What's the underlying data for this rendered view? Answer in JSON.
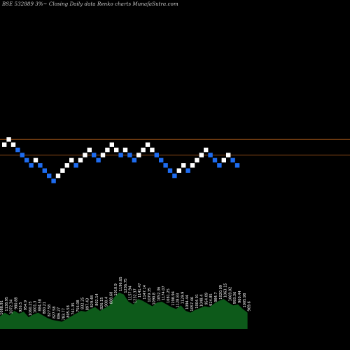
{
  "title": "BSE 532889 3%~  Closing Daily data  Renko  charts MunafaSutra.com",
  "chart_data": {
    "type": "renko",
    "renko": {
      "bricks": [
        {
          "level": 0,
          "dir": "up"
        },
        {
          "level": 1,
          "dir": "up"
        },
        {
          "level": 0,
          "dir": "up"
        },
        {
          "level": -1,
          "dir": "down"
        },
        {
          "level": -2,
          "dir": "down"
        },
        {
          "level": -3,
          "dir": "down"
        },
        {
          "level": -4,
          "dir": "down"
        },
        {
          "level": -3,
          "dir": "up"
        },
        {
          "level": -4,
          "dir": "down"
        },
        {
          "level": -5,
          "dir": "down"
        },
        {
          "level": -6,
          "dir": "down"
        },
        {
          "level": -7,
          "dir": "down"
        },
        {
          "level": -6,
          "dir": "up"
        },
        {
          "level": -5,
          "dir": "up"
        },
        {
          "level": -4,
          "dir": "up"
        },
        {
          "level": -3,
          "dir": "up"
        },
        {
          "level": -4,
          "dir": "down"
        },
        {
          "level": -3,
          "dir": "up"
        },
        {
          "level": -2,
          "dir": "up"
        },
        {
          "level": -1,
          "dir": "up"
        },
        {
          "level": -2,
          "dir": "down"
        },
        {
          "level": -3,
          "dir": "down"
        },
        {
          "level": -2,
          "dir": "up"
        },
        {
          "level": -1,
          "dir": "up"
        },
        {
          "level": 0,
          "dir": "up"
        },
        {
          "level": -1,
          "dir": "up"
        },
        {
          "level": -2,
          "dir": "down"
        },
        {
          "level": -1,
          "dir": "up"
        },
        {
          "level": -2,
          "dir": "down"
        },
        {
          "level": -3,
          "dir": "down"
        },
        {
          "level": -2,
          "dir": "up"
        },
        {
          "level": -1,
          "dir": "up"
        },
        {
          "level": 0,
          "dir": "up"
        },
        {
          "level": -1,
          "dir": "up"
        },
        {
          "level": -2,
          "dir": "down"
        },
        {
          "level": -3,
          "dir": "down"
        },
        {
          "level": -4,
          "dir": "down"
        },
        {
          "level": -5,
          "dir": "down"
        },
        {
          "level": -6,
          "dir": "down"
        },
        {
          "level": -5,
          "dir": "up"
        },
        {
          "level": -4,
          "dir": "up"
        },
        {
          "level": -5,
          "dir": "down"
        },
        {
          "level": -4,
          "dir": "up"
        },
        {
          "level": -3,
          "dir": "up"
        },
        {
          "level": -2,
          "dir": "up"
        },
        {
          "level": -1,
          "dir": "up"
        },
        {
          "level": -2,
          "dir": "down"
        },
        {
          "level": -3,
          "dir": "down"
        },
        {
          "level": -4,
          "dir": "down"
        },
        {
          "level": -3,
          "dir": "up"
        },
        {
          "level": -2,
          "dir": "up"
        },
        {
          "level": -3,
          "dir": "down"
        },
        {
          "level": -4,
          "dir": "down"
        }
      ],
      "up_color": "#ffffff",
      "down_color": "#1e6cf0",
      "reference_lines_levels": [
        0,
        -3
      ],
      "reference_line_color": "#c0661e"
    },
    "volume": {
      "values": [
        14,
        18,
        15,
        20,
        17,
        19,
        13,
        16,
        18,
        15,
        12,
        10,
        9,
        8,
        11,
        14,
        17,
        20,
        19,
        22,
        24,
        20,
        23,
        26,
        35,
        40,
        38,
        30,
        27,
        33,
        31,
        28,
        25,
        29,
        30,
        27,
        24,
        22,
        26,
        20,
        18,
        21,
        23,
        25,
        24,
        28,
        31,
        33,
        29,
        26,
        27,
        22,
        18
      ],
      "labels": [
        "1088.91",
        "1138.95",
        "1072.34",
        "980.88",
        "926.5",
        "954.9",
        "1060.25",
        "1001.3",
        "884.58",
        "880.21",
        "827.58",
        "827.58",
        "806.27",
        "783.77",
        "805.58",
        "761.35",
        "756.08",
        "832.25",
        "897.43",
        "829.48",
        "802.14",
        "826.15",
        "900.4",
        "888.68",
        "1010.9",
        "1196.65",
        "1236.75",
        "1157.94",
        "1232.37",
        "1141.47",
        "1147.14",
        "1079.35",
        "1090.8",
        "1052.36",
        "1174.07",
        "1081.25",
        "1198.94",
        "1128.83",
        "1129.9",
        "1094.44",
        "1057.46",
        "1004.01",
        "1048.4",
        "954.09",
        "924.85",
        "984.7",
        "1020.09",
        "1063.15",
        "1069.02",
        "993.36",
        "960.44",
        "1005.98",
        "969.6"
      ],
      "color": "#0d5a1a"
    }
  }
}
